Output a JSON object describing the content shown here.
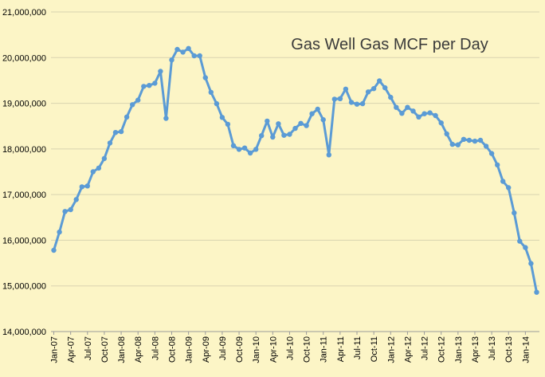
{
  "chart_data": {
    "type": "line",
    "title": "Gas Well Gas MCF per Day",
    "xlabel": "",
    "ylabel": "",
    "ylim": [
      14000000,
      21000000
    ],
    "y_ticks": [
      "14,000,000",
      "15,000,000",
      "16,000,000",
      "17,000,000",
      "18,000,000",
      "19,000,000",
      "20,000,000",
      "21,000,000"
    ],
    "grid": true,
    "legend": "none",
    "line_color": "#5b9bd5",
    "background": "#fcf5c6",
    "categories": [
      "Jan-07",
      "Feb-07",
      "Mar-07",
      "Apr-07",
      "May-07",
      "Jun-07",
      "Jul-07",
      "Aug-07",
      "Sep-07",
      "Oct-07",
      "Nov-07",
      "Dec-07",
      "Jan-08",
      "Feb-08",
      "Mar-08",
      "Apr-08",
      "May-08",
      "Jun-08",
      "Jul-08",
      "Aug-08",
      "Sep-08",
      "Oct-08",
      "Nov-08",
      "Dec-08",
      "Jan-09",
      "Feb-09",
      "Mar-09",
      "Apr-09",
      "May-09",
      "Jun-09",
      "Jul-09",
      "Aug-09",
      "Sep-09",
      "Oct-09",
      "Nov-09",
      "Dec-09",
      "Jan-10",
      "Feb-10",
      "Mar-10",
      "Apr-10",
      "May-10",
      "Jun-10",
      "Jul-10",
      "Aug-10",
      "Sep-10",
      "Oct-10",
      "Nov-10",
      "Dec-10",
      "Jan-11",
      "Feb-11",
      "Mar-11",
      "Apr-11",
      "May-11",
      "Jun-11",
      "Jul-11",
      "Aug-11",
      "Sep-11",
      "Oct-11",
      "Nov-11",
      "Dec-11",
      "Jan-12",
      "Feb-12",
      "Mar-12",
      "Apr-12",
      "May-12",
      "Jun-12",
      "Jul-12",
      "Aug-12",
      "Sep-12",
      "Oct-12",
      "Nov-12",
      "Dec-12",
      "Jan-13",
      "Feb-13",
      "Mar-13",
      "Apr-13",
      "May-13",
      "Jun-13",
      "Jul-13",
      "Aug-13",
      "Sep-13",
      "Oct-13",
      "Nov-13",
      "Dec-13",
      "Jan-14",
      "Feb-14",
      "Mar-14"
    ],
    "x_tick_labels": [
      "Jan-07",
      "Apr-07",
      "Jul-07",
      "Oct-07",
      "Jan-08",
      "Apr-08",
      "Jul-08",
      "Oct-08",
      "Jan-09",
      "Apr-09",
      "Jul-09",
      "Oct-09",
      "Jan-10",
      "Apr-10",
      "Jul-10",
      "Oct-10",
      "Jan-11",
      "Apr-11",
      "Jul-11",
      "Oct-11",
      "Jan-12",
      "Apr-12",
      "Jul-12",
      "Oct-12",
      "Jan-13",
      "Apr-13",
      "Jul-13",
      "Oct-13",
      "Jan-14"
    ],
    "series": [
      {
        "values": [
          15780000,
          16180000,
          16630000,
          16670000,
          16890000,
          17170000,
          17190000,
          17500000,
          17580000,
          17790000,
          18130000,
          18360000,
          18380000,
          18700000,
          18970000,
          19070000,
          19370000,
          19390000,
          19440000,
          19700000,
          18670000,
          19950000,
          20180000,
          20120000,
          20200000,
          20040000,
          20040000,
          19560000,
          19240000,
          18990000,
          18690000,
          18540000,
          18070000,
          17990000,
          18020000,
          17910000,
          17990000,
          18290000,
          18610000,
          18260000,
          18550000,
          18300000,
          18320000,
          18450000,
          18560000,
          18510000,
          18770000,
          18870000,
          18640000,
          17870000,
          19090000,
          19100000,
          19310000,
          19020000,
          18980000,
          18990000,
          19250000,
          19320000,
          19490000,
          19340000,
          19130000,
          18910000,
          18780000,
          18910000,
          18830000,
          18700000,
          18770000,
          18790000,
          18730000,
          18570000,
          18330000,
          18100000,
          18090000,
          18210000,
          18190000,
          18170000,
          18190000,
          18060000,
          17900000,
          17650000,
          17290000,
          17150000,
          16600000,
          15980000,
          15840000,
          15490000,
          14860000
        ]
      }
    ]
  }
}
